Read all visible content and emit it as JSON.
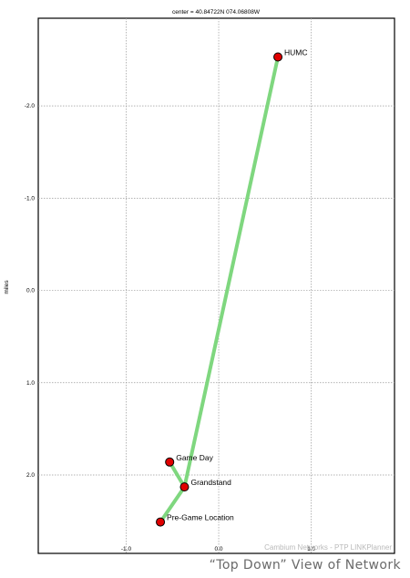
{
  "chart_data": {
    "type": "network-map",
    "center_label": "center = 40.84722N 074.06808W",
    "ylabel": "miles",
    "x_ticks": [
      {
        "value": -1.0,
        "label": "-1.0"
      },
      {
        "value": 0.0,
        "label": "0.0"
      },
      {
        "value": 1.0,
        "label": "1.0"
      }
    ],
    "y_ticks": [
      {
        "value": -2.0,
        "label": "-2.0"
      },
      {
        "value": -1.0,
        "label": "-1.0"
      },
      {
        "value": 0.0,
        "label": "0.0"
      },
      {
        "value": 1.0,
        "label": "1.0"
      },
      {
        "value": 2.0,
        "label": "2.0"
      }
    ],
    "xlim": [
      -1.95,
      1.9
    ],
    "ylim": [
      -2.95,
      2.85
    ],
    "y_inverted": true,
    "grid": true,
    "link_color": "#7fd77f",
    "node_color": "#e00000",
    "nodes": [
      {
        "name": "HUMC",
        "x": 0.64,
        "y": -2.53
      },
      {
        "name": "Game Day",
        "x": -0.53,
        "y": 1.86
      },
      {
        "name": "Grandstand",
        "x": -0.37,
        "y": 2.13
      },
      {
        "name": "Pre-Game Location",
        "x": -0.63,
        "y": 2.51
      }
    ],
    "links": [
      [
        "HUMC",
        "Grandstand"
      ],
      [
        "Game Day",
        "Grandstand"
      ],
      [
        "Grandstand",
        "Pre-Game Location"
      ]
    ]
  },
  "watermark": "Cambium Networks - PTP LINKPlanner",
  "caption": "“Top Down” View of Network"
}
